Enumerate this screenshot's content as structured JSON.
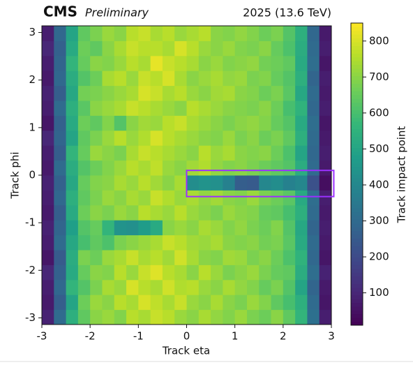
{
  "chart_data": {
    "type": "heatmap",
    "title": "CMS",
    "subtitle": "Preliminary",
    "annotation": "2025 (13.6 TeV)",
    "x_label": "Track eta",
    "y_label": "Track phi",
    "colorbar_label": "Track impact point",
    "colormap": "viridis",
    "x_bins": [
      -3,
      -2.75,
      -2.5,
      -2.25,
      -2,
      -1.75,
      -1.5,
      -1.25,
      -1,
      -0.75,
      -0.5,
      -0.25,
      0,
      0.25,
      0.5,
      0.75,
      1,
      1.25,
      1.5,
      1.75,
      2,
      2.25,
      2.5,
      2.75,
      3
    ],
    "y_bins": [
      -3.14,
      -2.826,
      -2.512,
      -2.198,
      -1.884,
      -1.57,
      -1.256,
      -0.942,
      -0.628,
      -0.314,
      0,
      0.314,
      0.628,
      0.942,
      1.256,
      1.57,
      1.884,
      2.198,
      2.512,
      2.826,
      3.14
    ],
    "values": [
      [
        90,
        300,
        540,
        640,
        700,
        720,
        690,
        760,
        740,
        780,
        760,
        720,
        700,
        740,
        710,
        690,
        720,
        680,
        660,
        700,
        640,
        560,
        320,
        80
      ],
      [
        70,
        260,
        500,
        660,
        720,
        700,
        760,
        740,
        800,
        770,
        740,
        780,
        720,
        700,
        740,
        700,
        680,
        720,
        690,
        640,
        600,
        540,
        300,
        60
      ],
      [
        80,
        290,
        560,
        620,
        680,
        740,
        720,
        800,
        760,
        740,
        790,
        750,
        760,
        720,
        700,
        740,
        710,
        690,
        650,
        680,
        620,
        500,
        280,
        70
      ],
      [
        100,
        270,
        520,
        650,
        700,
        690,
        760,
        720,
        780,
        810,
        760,
        740,
        700,
        760,
        720,
        680,
        700,
        720,
        680,
        650,
        640,
        530,
        310,
        90
      ],
      [
        60,
        250,
        530,
        680,
        660,
        720,
        740,
        780,
        740,
        760,
        730,
        790,
        740,
        700,
        690,
        730,
        720,
        680,
        700,
        660,
        610,
        550,
        290,
        60
      ],
      [
        80,
        300,
        510,
        600,
        640,
        610,
        680,
        700,
        720,
        740,
        780,
        760,
        730,
        720,
        740,
        700,
        690,
        700,
        670,
        680,
        630,
        520,
        300,
        70
      ],
      [
        90,
        280,
        480,
        620,
        650,
        560,
        440,
        430,
        470,
        520,
        700,
        720,
        700,
        740,
        720,
        690,
        710,
        680,
        660,
        690,
        620,
        510,
        280,
        80
      ],
      [
        70,
        260,
        520,
        660,
        700,
        680,
        720,
        700,
        760,
        740,
        720,
        760,
        720,
        700,
        680,
        720,
        700,
        690,
        650,
        640,
        600,
        540,
        300,
        70
      ],
      [
        80,
        290,
        540,
        640,
        680,
        720,
        700,
        740,
        720,
        780,
        750,
        720,
        740,
        710,
        730,
        700,
        690,
        720,
        680,
        660,
        630,
        520,
        310,
        80
      ],
      [
        90,
        270,
        510,
        650,
        690,
        700,
        740,
        720,
        760,
        730,
        700,
        740,
        420,
        440,
        430,
        380,
        260,
        250,
        400,
        420,
        380,
        400,
        220,
        40
      ],
      [
        70,
        300,
        530,
        620,
        660,
        690,
        720,
        760,
        740,
        770,
        720,
        700,
        730,
        750,
        710,
        690,
        700,
        680,
        660,
        640,
        620,
        530,
        300,
        70
      ],
      [
        80,
        260,
        560,
        650,
        720,
        700,
        680,
        740,
        780,
        760,
        740,
        720,
        700,
        760,
        720,
        740,
        700,
        690,
        700,
        660,
        610,
        500,
        290,
        80
      ],
      [
        100,
        280,
        500,
        640,
        680,
        720,
        760,
        720,
        750,
        800,
        760,
        740,
        720,
        700,
        690,
        720,
        680,
        700,
        660,
        680,
        640,
        540,
        300,
        70
      ],
      [
        60,
        270,
        520,
        660,
        640,
        690,
        620,
        700,
        730,
        720,
        760,
        780,
        740,
        720,
        700,
        680,
        700,
        710,
        690,
        650,
        620,
        520,
        310,
        60
      ],
      [
        80,
        300,
        540,
        630,
        700,
        720,
        740,
        780,
        760,
        740,
        720,
        700,
        760,
        740,
        720,
        700,
        690,
        680,
        700,
        660,
        600,
        550,
        290,
        80
      ],
      [
        90,
        260,
        510,
        670,
        680,
        700,
        720,
        740,
        800,
        780,
        740,
        760,
        720,
        700,
        730,
        740,
        700,
        690,
        660,
        680,
        630,
        510,
        300,
        70
      ],
      [
        70,
        290,
        530,
        620,
        660,
        740,
        760,
        720,
        780,
        760,
        800,
        740,
        700,
        720,
        740,
        710,
        720,
        680,
        690,
        650,
        620,
        540,
        280,
        80
      ],
      [
        80,
        280,
        560,
        650,
        700,
        690,
        720,
        760,
        740,
        820,
        780,
        760,
        740,
        700,
        720,
        690,
        700,
        710,
        670,
        660,
        640,
        520,
        310,
        60
      ],
      [
        100,
        270,
        520,
        660,
        640,
        700,
        740,
        780,
        760,
        760,
        740,
        800,
        760,
        720,
        700,
        720,
        690,
        680,
        700,
        650,
        610,
        530,
        300,
        80
      ],
      [
        80,
        290,
        500,
        640,
        680,
        720,
        700,
        760,
        780,
        740,
        760,
        720,
        740,
        760,
        700,
        690,
        710,
        690,
        660,
        680,
        620,
        540,
        290,
        70
      ]
    ],
    "xlim": [
      -3,
      3
    ],
    "ylim": [
      -3.14,
      3.14
    ],
    "xticks": [
      -3,
      -2,
      -1,
      0,
      1,
      2,
      3
    ],
    "yticks": [
      -3,
      -2,
      -1,
      0,
      1,
      2,
      3
    ],
    "clim": [
      10,
      850
    ],
    "cticks": [
      100,
      200,
      300,
      400,
      500,
      600,
      700,
      800
    ],
    "highlight": {
      "xlim": [
        0,
        3.05
      ],
      "ylim": [
        -0.45,
        0.1
      ],
      "color": "#9b30ff"
    }
  }
}
